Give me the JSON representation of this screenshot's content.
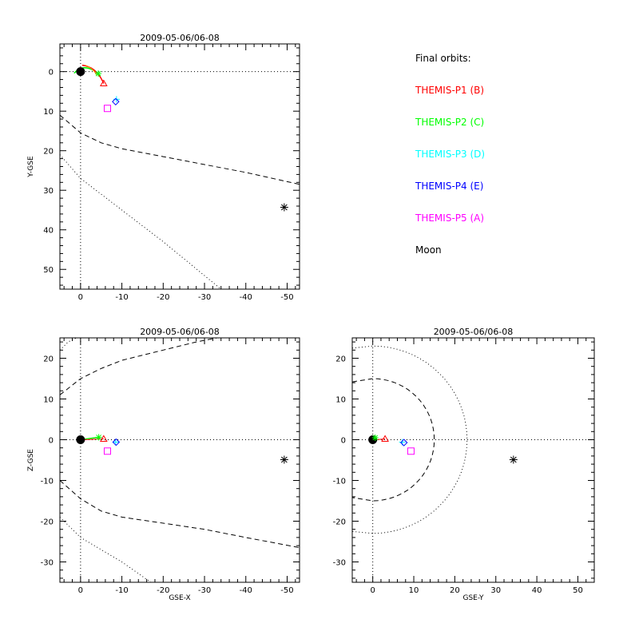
{
  "legend": {
    "title": "Final orbits:",
    "items": [
      {
        "label": "THEMIS-P1 (B)",
        "color": "#ff0000"
      },
      {
        "label": "THEMIS-P2 (C)",
        "color": "#00ff00"
      },
      {
        "label": "THEMIS-P3 (D)",
        "color": "#00ffff"
      },
      {
        "label": "THEMIS-P4 (E)",
        "color": "#0000ff"
      },
      {
        "label": "THEMIS-P5 (A)",
        "color": "#ff00ff"
      },
      {
        "label": "Moon",
        "color": "#000000"
      }
    ]
  },
  "chart_data": [
    {
      "type": "scatter",
      "title": "2009-05-06/06-08",
      "xlabel": "",
      "ylabel": "Y-GSE",
      "xlim": [
        5,
        -53
      ],
      "ylim": [
        55,
        -7
      ],
      "xticks": [
        0,
        -10,
        -20,
        -30,
        -40,
        -50
      ],
      "yticks": [
        0,
        10,
        20,
        30,
        40,
        50
      ],
      "grid": false,
      "earth": [
        0,
        0
      ],
      "spacecraft": [
        {
          "marker": "triangle",
          "color": "#ff0000",
          "x": -5.6,
          "y": 3.0
        },
        {
          "marker": "asterisk",
          "color": "#00ff00",
          "x": -4.3,
          "y": 0.5
        },
        {
          "marker": "plus",
          "color": "#00ffff",
          "x": -8.7,
          "y": 7.0
        },
        {
          "marker": "diamond",
          "color": "#0000ff",
          "x": -8.5,
          "y": 7.6
        },
        {
          "marker": "square",
          "color": "#ff00ff",
          "x": -6.5,
          "y": 9.3
        }
      ],
      "moon": {
        "x": -49.3,
        "y": 34.3
      }
    },
    {
      "type": "scatter",
      "title": "2009-05-06/06-08",
      "xlabel": "GSE-X",
      "ylabel": "Z-GSE",
      "xlim": [
        5,
        -53
      ],
      "ylim": [
        -35,
        25
      ],
      "xticks": [
        0,
        -10,
        -20,
        -30,
        -40,
        -50
      ],
      "yticks": [
        20,
        10,
        0,
        -10,
        -20,
        -30
      ],
      "grid": false,
      "earth": [
        0,
        0
      ],
      "spacecraft": [
        {
          "marker": "triangle",
          "color": "#ff0000",
          "x": -5.6,
          "y": 0.2
        },
        {
          "marker": "asterisk",
          "color": "#00ff00",
          "x": -4.4,
          "y": 0.6
        },
        {
          "marker": "plus",
          "color": "#00ffff",
          "x": -8.5,
          "y": -0.6
        },
        {
          "marker": "diamond",
          "color": "#0000ff",
          "x": -8.6,
          "y": -0.6
        },
        {
          "marker": "square",
          "color": "#ff00ff",
          "x": -6.5,
          "y": -2.8
        }
      ],
      "moon": {
        "x": -49.3,
        "y": -4.9
      }
    },
    {
      "type": "scatter",
      "title": "2009-05-06/06-08",
      "xlabel": "GSE-Y",
      "ylabel": "",
      "xlim": [
        -5,
        54
      ],
      "ylim": [
        -35,
        25
      ],
      "xticks": [
        0,
        10,
        20,
        30,
        40,
        50
      ],
      "yticks": [
        20,
        10,
        0,
        -10,
        -20,
        -30
      ],
      "grid": false,
      "earth": [
        0,
        0
      ],
      "spacecraft": [
        {
          "marker": "triangle",
          "color": "#ff0000",
          "x": 3.0,
          "y": 0.2
        },
        {
          "marker": "asterisk",
          "color": "#00ff00",
          "x": 0.6,
          "y": 0.5
        },
        {
          "marker": "plus",
          "color": "#00ffff",
          "x": 7.2,
          "y": -0.6
        },
        {
          "marker": "diamond",
          "color": "#0000ff",
          "x": 7.6,
          "y": -0.7
        },
        {
          "marker": "square",
          "color": "#ff00ff",
          "x": 9.3,
          "y": -2.8
        }
      ],
      "moon": {
        "x": 34.3,
        "y": -4.9
      }
    }
  ]
}
